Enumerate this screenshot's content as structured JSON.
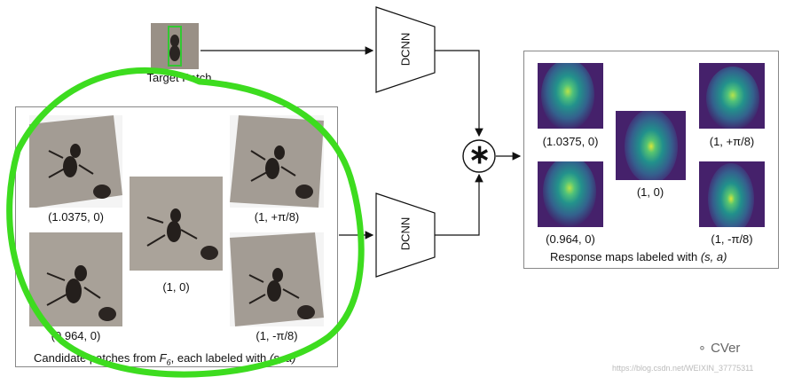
{
  "target_patch_label": "Target Patch",
  "dcnn_label": "DCNN",
  "candidates": {
    "caption_prefix": "Candidate patches from ",
    "caption_f": "F",
    "caption_sub": "6",
    "caption_mid": ", each labeled with ",
    "caption_sa": "(s, a)",
    "labels": {
      "tl": "(1.0375, 0)",
      "bl": "(0.964, 0)",
      "center": "(1, 0)",
      "tr": "(1, +π/8)",
      "br": "(1, -π/8)"
    }
  },
  "responses": {
    "caption_prefix": "Response maps labeled with ",
    "caption_sa": "(s, a)",
    "labels": {
      "tl": "(1.0375, 0)",
      "bl": "(0.964, 0)",
      "center": "(1, 0)",
      "tr": "(1, +π/8)",
      "br": "(1, -π/8)"
    }
  },
  "conv_symbol": "∗",
  "watermark": {
    "brand": "CVer",
    "url": "https://blog.csdn.net/WEIXIN_37775311"
  },
  "colors": {
    "highlight_green": "#3ddc1f",
    "patch_green_box": "#32c832",
    "viridis_dark": "#3b1f6b",
    "viridis_mid": "#2a8a8a",
    "viridis_bright": "#9be04a"
  }
}
